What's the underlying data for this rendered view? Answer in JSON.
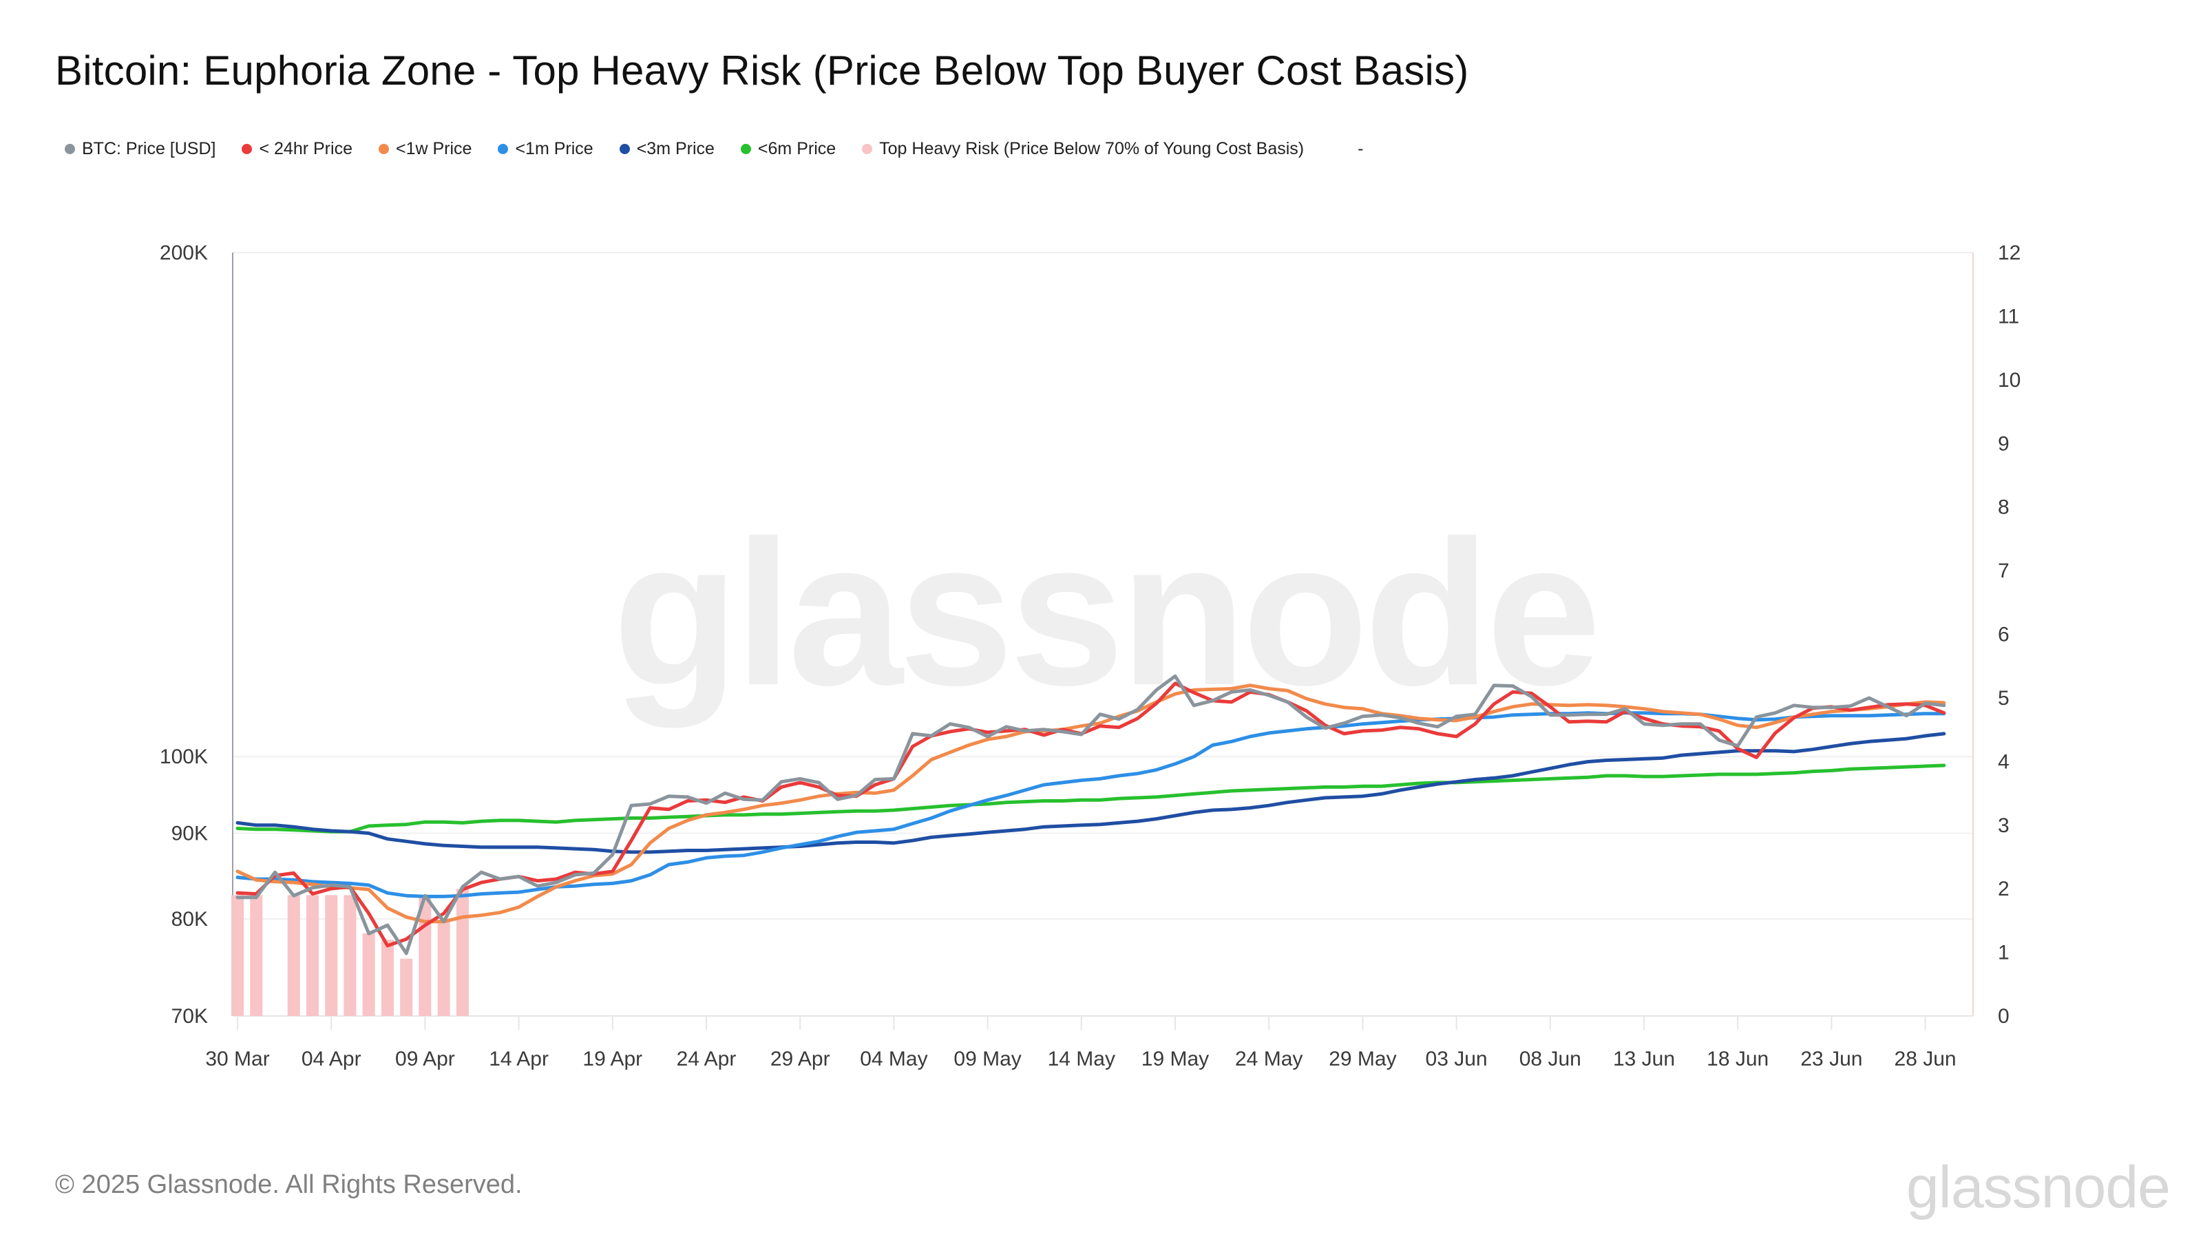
{
  "title": "Bitcoin: Euphoria Zone - Top Heavy Risk (Price Below Top Buyer Cost Basis)",
  "legend": [
    {
      "label": "BTC: Price [USD]",
      "color": "#8a949c"
    },
    {
      "label": "< 24hr Price",
      "color": "#ea3a3a"
    },
    {
      "label": "<1w Price",
      "color": "#f28a4b"
    },
    {
      "label": "<1m Price",
      "color": "#2d8fe6"
    },
    {
      "label": "<3m Price",
      "color": "#1f4ea3"
    },
    {
      "label": "<6m Price",
      "color": "#27c02e"
    },
    {
      "label": "Top Heavy Risk (Price Below 70% of Young Cost Basis)",
      "color": "#f8c4c6"
    }
  ],
  "legend_trailing": "-",
  "watermark": "glassnode",
  "footer": {
    "copyright": "© 2025 Glassnode. All Rights Reserved.",
    "logo": "glassnode"
  },
  "chart_data": {
    "type": "line",
    "title": "Bitcoin: Euphoria Zone - Top Heavy Risk (Price Below Top Buyer Cost Basis)",
    "xlabel": "",
    "ylabel": "",
    "y_scale": "log",
    "ylim": [
      70000,
      200000
    ],
    "y_ticks": [
      "70K",
      "80K",
      "90K",
      "100K",
      "200K"
    ],
    "y_tick_values": [
      70000,
      80000,
      90000,
      100000,
      200000
    ],
    "y2lim": [
      0,
      12
    ],
    "y2_ticks": [
      "0",
      "1",
      "2",
      "3",
      "4",
      "5",
      "6",
      "7",
      "8",
      "9",
      "10",
      "11",
      "12"
    ],
    "x_start": "30 Mar",
    "x_ticks": [
      "30 Mar",
      "04 Apr",
      "09 Apr",
      "14 Apr",
      "19 Apr",
      "24 Apr",
      "29 Apr",
      "04 May",
      "09 May",
      "14 May",
      "19 May",
      "24 May",
      "29 May",
      "03 Jun",
      "08 Jun",
      "13 Jun",
      "18 Jun",
      "23 Jun",
      "28 Jun"
    ],
    "x_tick_day_index": [
      0,
      5,
      10,
      15,
      20,
      25,
      30,
      35,
      40,
      45,
      50,
      55,
      60,
      65,
      70,
      75,
      80,
      85,
      90
    ],
    "grid": true,
    "legend_position": "top-left",
    "series_units": "thousand USD",
    "series": [
      {
        "name": "<6m Price",
        "color": "#27c02e",
        "axis": "left",
        "values": [
          90.6,
          90.5,
          90.5,
          90.4,
          90.3,
          90.2,
          90.2,
          90.9,
          91.0,
          91.1,
          91.4,
          91.4,
          91.3,
          91.5,
          91.6,
          91.6,
          91.5,
          91.4,
          91.6,
          91.7,
          91.8,
          91.9,
          91.9,
          92.0,
          92.1,
          92.2,
          92.3,
          92.3,
          92.4,
          92.4,
          92.5,
          92.6,
          92.7,
          92.8,
          92.8,
          92.9,
          93.1,
          93.3,
          93.5,
          93.6,
          93.7,
          93.9,
          94.0,
          94.1,
          94.1,
          94.2,
          94.2,
          94.4,
          94.5,
          94.6,
          94.8,
          95.0,
          95.2,
          95.4,
          95.5,
          95.6,
          95.7,
          95.8,
          95.9,
          95.9,
          96.0,
          96.0,
          96.2,
          96.4,
          96.5,
          96.5,
          96.6,
          96.7,
          96.8,
          96.9,
          97.0,
          97.1,
          97.2,
          97.4,
          97.4,
          97.3,
          97.3,
          97.4,
          97.5,
          97.6,
          97.6,
          97.6,
          97.7,
          97.8,
          98.0,
          98.1,
          98.3,
          98.4,
          98.5,
          98.6,
          98.7,
          98.8
        ]
      },
      {
        "name": "<3m Price",
        "color": "#1f4ea3",
        "axis": "left",
        "values": [
          91.3,
          91.0,
          91.0,
          90.8,
          90.5,
          90.3,
          90.2,
          90.0,
          89.3,
          89.0,
          88.7,
          88.5,
          88.4,
          88.3,
          88.3,
          88.3,
          88.3,
          88.2,
          88.1,
          88.0,
          87.8,
          87.7,
          87.7,
          87.8,
          87.9,
          87.9,
          88.0,
          88.1,
          88.2,
          88.3,
          88.4,
          88.6,
          88.8,
          88.9,
          88.9,
          88.8,
          89.1,
          89.5,
          89.7,
          89.9,
          90.1,
          90.3,
          90.5,
          90.8,
          90.9,
          91.0,
          91.1,
          91.3,
          91.5,
          91.8,
          92.2,
          92.6,
          92.9,
          93.0,
          93.2,
          93.5,
          93.9,
          94.2,
          94.5,
          94.6,
          94.7,
          95.0,
          95.5,
          95.9,
          96.3,
          96.6,
          96.9,
          97.1,
          97.4,
          97.9,
          98.4,
          98.9,
          99.3,
          99.5,
          99.6,
          99.7,
          99.8,
          100.2,
          100.4,
          100.6,
          100.8,
          100.8,
          100.8,
          100.7,
          101.0,
          101.4,
          101.8,
          102.1,
          102.3,
          102.5,
          102.9,
          103.2
        ]
      },
      {
        "name": "<1m Price",
        "color": "#2d8fe6",
        "axis": "left",
        "values": [
          84.7,
          84.5,
          84.5,
          84.4,
          84.2,
          84.1,
          84.0,
          83.8,
          82.9,
          82.6,
          82.5,
          82.5,
          82.6,
          82.8,
          82.9,
          83.0,
          83.3,
          83.6,
          83.7,
          83.9,
          84.0,
          84.3,
          85.0,
          86.2,
          86.5,
          87.0,
          87.2,
          87.3,
          87.7,
          88.2,
          88.6,
          89.0,
          89.6,
          90.1,
          90.3,
          90.5,
          91.2,
          91.9,
          92.8,
          93.5,
          94.2,
          94.8,
          95.5,
          96.2,
          96.5,
          96.8,
          97.0,
          97.4,
          97.7,
          98.2,
          99.0,
          100.0,
          101.6,
          102.1,
          102.8,
          103.3,
          103.6,
          103.9,
          104.1,
          104.3,
          104.6,
          104.8,
          105.0,
          105.2,
          105.3,
          105.4,
          105.5,
          105.6,
          105.9,
          106.0,
          106.1,
          106.1,
          106.2,
          106.1,
          106.2,
          106.2,
          106.1,
          106.1,
          106.0,
          105.7,
          105.4,
          105.2,
          105.3,
          105.6,
          105.7,
          105.8,
          105.8,
          105.8,
          105.9,
          106.0,
          106.1,
          106.1
        ]
      },
      {
        "name": "<1w Price",
        "color": "#f28a4b",
        "axis": "left",
        "values": [
          85.4,
          84.4,
          84.2,
          84.1,
          83.9,
          83.6,
          83.5,
          83.3,
          81.2,
          80.2,
          79.7,
          79.7,
          80.2,
          80.4,
          80.7,
          81.3,
          82.5,
          83.6,
          84.3,
          84.9,
          85.1,
          86.2,
          88.8,
          90.6,
          91.6,
          92.3,
          92.6,
          93.0,
          93.5,
          93.8,
          94.2,
          94.7,
          95.0,
          95.2,
          95.1,
          95.5,
          97.4,
          99.6,
          100.6,
          101.6,
          102.4,
          102.8,
          103.5,
          103.6,
          103.8,
          104.3,
          104.7,
          105.7,
          106.5,
          107.8,
          109.0,
          109.6,
          109.7,
          109.8,
          110.3,
          109.8,
          109.5,
          108.3,
          107.5,
          107.0,
          106.8,
          106.1,
          105.8,
          105.4,
          105.2,
          105.1,
          105.6,
          106.4,
          107.1,
          107.5,
          107.4,
          107.3,
          107.4,
          107.3,
          107.1,
          106.8,
          106.4,
          106.2,
          106.0,
          105.3,
          104.4,
          104.1,
          104.8,
          105.6,
          106.0,
          106.4,
          106.6,
          106.8,
          107.1,
          107.5,
          107.8,
          107.7
        ]
      },
      {
        "name": "< 24hr Price",
        "color": "#ea3a3a",
        "axis": "left",
        "values": [
          82.9,
          82.8,
          84.9,
          85.2,
          82.8,
          83.4,
          83.6,
          80.6,
          77.1,
          77.8,
          79.3,
          80.6,
          83.3,
          84.1,
          84.5,
          84.8,
          84.3,
          84.5,
          85.3,
          85.1,
          85.4,
          89.1,
          93.2,
          93.0,
          94.1,
          94.2,
          93.9,
          94.6,
          94.1,
          95.9,
          96.5,
          95.9,
          94.8,
          94.7,
          96.2,
          97.0,
          101.4,
          102.9,
          103.5,
          103.9,
          103.4,
          103.6,
          103.8,
          103.0,
          103.8,
          103.2,
          104.3,
          104.1,
          105.4,
          107.6,
          110.6,
          109.2,
          108.0,
          107.8,
          109.3,
          108.9,
          107.8,
          106.5,
          104.4,
          103.2,
          103.6,
          103.7,
          104.1,
          103.9,
          103.2,
          102.8,
          104.6,
          107.5,
          109.3,
          109.1,
          107.1,
          104.9,
          105.0,
          104.9,
          106.4,
          105.4,
          104.6,
          104.3,
          104.2,
          103.6,
          101.1,
          99.9,
          103.3,
          105.5,
          106.9,
          107.1,
          106.6,
          107.0,
          107.4,
          107.5,
          107.3,
          106.2
        ]
      },
      {
        "name": "BTC: Price [USD]",
        "color": "#8a949c",
        "axis": "left",
        "values": [
          82.4,
          82.4,
          85.3,
          82.6,
          83.5,
          83.8,
          83.6,
          78.4,
          79.3,
          76.3,
          82.6,
          79.7,
          83.6,
          85.3,
          84.5,
          84.8,
          83.7,
          84.1,
          85.0,
          85.2,
          87.4,
          93.5,
          93.7,
          94.7,
          94.6,
          93.8,
          95.1,
          94.3,
          94.2,
          96.6,
          97.0,
          96.5,
          94.3,
          94.8,
          96.9,
          97.0,
          103.2,
          102.9,
          104.6,
          104.1,
          102.8,
          104.2,
          103.6,
          103.8,
          103.5,
          103.1,
          106.0,
          105.3,
          106.7,
          109.6,
          111.7,
          107.3,
          108.0,
          109.3,
          109.6,
          108.8,
          107.8,
          105.6,
          104.0,
          104.7,
          105.7,
          105.9,
          105.5,
          104.7,
          104.2,
          105.7,
          106.0,
          110.3,
          110.2,
          108.6,
          105.9,
          105.9,
          106.0,
          106.0,
          106.8,
          104.6,
          104.4,
          104.6,
          104.6,
          102.3,
          101.5,
          105.6,
          106.2,
          107.3,
          107.0,
          107.0,
          107.2,
          108.4,
          107.1,
          105.8,
          107.6,
          107.3
        ]
      },
      {
        "name": "Top Heavy Risk (Price Below 70% of Young Cost Basis)",
        "color": "#f8c4c6",
        "axis": "right",
        "type": "bar",
        "values": [
          1.9,
          1.9,
          0,
          1.9,
          1.9,
          1.9,
          1.9,
          1.3,
          1.2,
          0.9,
          1.9,
          1.5,
          2.0,
          0,
          0,
          0,
          0,
          0,
          0,
          0,
          0,
          0,
          0,
          0,
          0,
          0,
          0,
          0,
          0,
          0,
          0,
          0,
          0,
          0,
          0,
          0,
          0,
          0,
          0,
          0,
          0,
          0,
          0,
          0,
          0,
          0,
          0,
          0,
          0,
          0,
          0,
          0,
          0,
          0,
          0,
          0,
          0,
          0,
          0,
          0,
          0,
          0,
          0,
          0,
          0,
          0,
          0,
          0,
          0,
          0,
          0,
          0,
          0,
          0,
          0,
          0,
          0,
          0,
          0,
          0,
          0,
          0,
          0,
          0,
          0,
          0,
          0,
          0,
          0,
          0,
          0,
          0
        ]
      }
    ]
  }
}
